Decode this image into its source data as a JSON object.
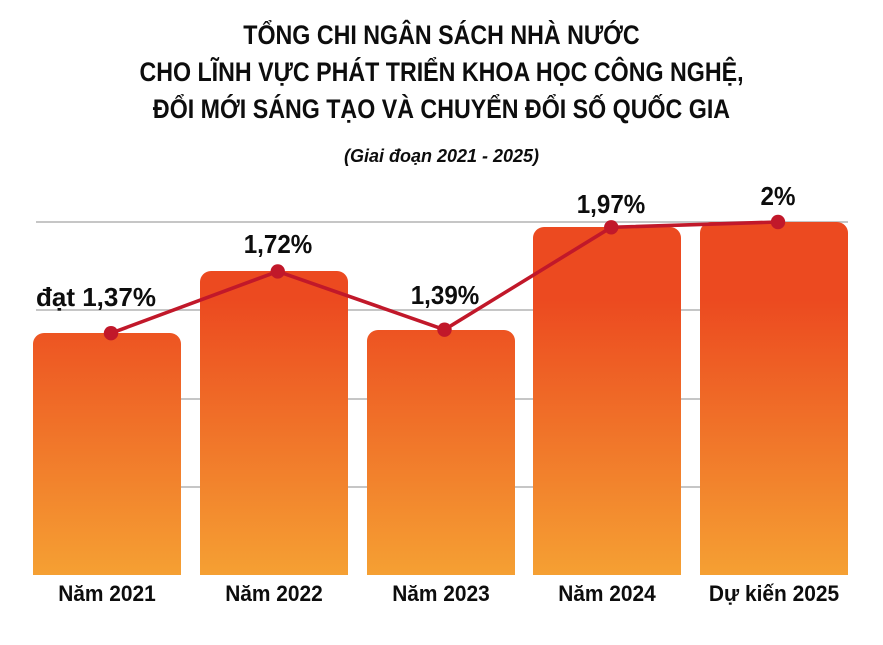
{
  "title": {
    "line1": "TỔNG CHI NGÂN SÁCH NHÀ NƯỚC",
    "line2": "CHO LĨNH VỰC PHÁT TRIỂN KHOA HỌC CÔNG NGHỆ,",
    "line3": "ĐỔI MỚI SÁNG TẠO VÀ CHUYỂN ĐỔI SỐ QUỐC GIA",
    "subtitle": "(Giai đoạn 2021 - 2025)"
  },
  "chart_data": {
    "type": "bar",
    "overlay": "line",
    "title": "TỔNG CHI NGÂN SÁCH NHÀ NƯỚC CHO LĨNH VỰC PHÁT TRIỂN KHOA HỌC CÔNG NGHỆ, ĐỔI MỚI SÁNG TẠO VÀ CHUYỂN ĐỔI SỐ QUỐC GIA",
    "subtitle": "(Giai đoạn 2021 - 2025)",
    "categories": [
      "Năm 2021",
      "Năm 2022",
      "Năm 2023",
      "Năm 2024",
      "Dự kiến 2025"
    ],
    "values": [
      1.37,
      1.72,
      1.39,
      1.97,
      2.0
    ],
    "value_labels": [
      "đạt 1,37%",
      "1,72%",
      "1,39%",
      "1,97%",
      "2%"
    ],
    "unit": "%",
    "xlabel": "",
    "ylabel": "",
    "ylim": [
      0,
      2
    ],
    "gridlines_at": [
      0.5,
      1.0,
      1.5,
      2.0
    ],
    "grid": "horizontal",
    "legend": "none",
    "colors": {
      "bar_top": "#ec4a20",
      "bar_bottom": "#f5a033",
      "line": "#c1182a",
      "dot": "#c1182a",
      "gridline": "#c6c6c6",
      "text": "#0d0d0d",
      "background": "#ffffff"
    }
  }
}
